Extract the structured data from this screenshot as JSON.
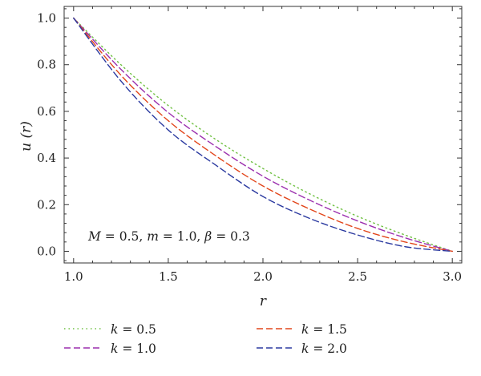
{
  "chart_data": {
    "type": "line",
    "title": "",
    "xlabel": "r",
    "ylabel": "u (r)",
    "xlim": [
      0.95,
      3.05
    ],
    "ylim": [
      -0.05,
      1.05
    ],
    "xticks": [
      "1.0",
      "1.5",
      "2.0",
      "2.5",
      "3.0"
    ],
    "yticks": [
      "0.0",
      "0.2",
      "0.4",
      "0.6",
      "0.8",
      "1.0"
    ],
    "grid": false,
    "legend_position": "bottom",
    "annotation": {
      "M_sym": "M",
      "M_val": " = 0.5, ",
      "m_sym": "m",
      "m_val": " = 1.0, ",
      "beta_sym": "β",
      "beta_val": " = 0.3"
    },
    "x": [
      1.0,
      1.25,
      1.5,
      1.75,
      2.0,
      2.25,
      2.5,
      2.75,
      3.0
    ],
    "series": [
      {
        "name_sym": "k",
        "name_val": " = 0.5",
        "color": "#6fc042",
        "dash": "1.5,4",
        "values": [
          1.0,
          0.8,
          0.625,
          0.48,
          0.355,
          0.245,
          0.15,
          0.07,
          0.0
        ]
      },
      {
        "name_sym": "k",
        "name_val": " = 1.0",
        "color": "#9b2fae",
        "dash": "8,4",
        "values": [
          1.0,
          0.78,
          0.595,
          0.45,
          0.322,
          0.218,
          0.13,
          0.058,
          0.0
        ]
      },
      {
        "name_sym": "k",
        "name_val": " = 1.5",
        "color": "#e2461b",
        "dash": "8,4",
        "values": [
          1.0,
          0.755,
          0.56,
          0.41,
          0.28,
          0.18,
          0.098,
          0.04,
          0.0
        ]
      },
      {
        "name_sym": "k",
        "name_val": " = 2.0",
        "color": "#2b3aa0",
        "dash": "8,4",
        "values": [
          1.0,
          0.73,
          0.52,
          0.37,
          0.235,
          0.14,
          0.07,
          0.02,
          0.0
        ]
      }
    ]
  }
}
